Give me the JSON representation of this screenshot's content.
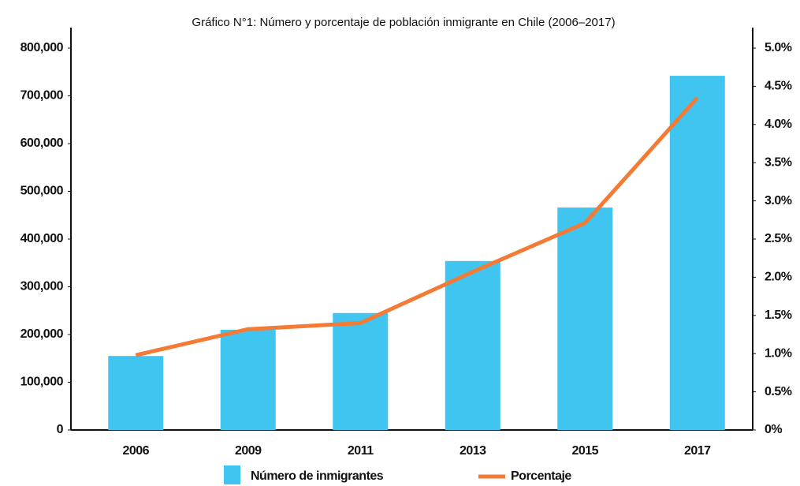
{
  "chart_data": {
    "type": "bar_line",
    "title": "Gráfico N°1: Número y porcentaje de población inmigrante en Chile (2006–2017)",
    "categories": [
      "2006",
      "2009",
      "2011",
      "2013",
      "2015",
      "2017"
    ],
    "series": [
      {
        "name": "Número de inmigrantes",
        "color": "#40c4f0",
        "type": "bar",
        "axis": "y",
        "values": [
          155000,
          210000,
          245000,
          354000,
          466000,
          742000
        ]
      },
      {
        "name": "Porcentaje",
        "color": "#f47b35",
        "type": "line",
        "axis": "y2",
        "values": [
          0.98,
          1.32,
          1.4,
          2.07,
          2.71,
          4.35
        ]
      }
    ],
    "ylim": [
      0,
      800000
    ],
    "yticks": [
      0,
      {
        "value": 100000,
        "label": "100,000"
      },
      {
        "value": 200000,
        "label": "200,000"
      },
      {
        "value": 300000,
        "label": "300,000"
      },
      {
        "value": 400000,
        "label": "400,000"
      },
      {
        "value": 500000,
        "label": "500,000"
      },
      {
        "value": 600000,
        "label": "600,000"
      },
      {
        "value": 700000,
        "label": "700,000"
      },
      {
        "value": 800000,
        "label": "800,000"
      }
    ],
    "y2lim": [
      0,
      5
    ],
    "y2ticks": [
      {
        "value": 0,
        "label": "0%"
      },
      {
        "value": 0.5,
        "label": "0.5%"
      },
      {
        "value": 1,
        "label": "1.0%"
      },
      {
        "value": 1.5,
        "label": "1.5%"
      },
      {
        "value": 2,
        "label": "2.0%"
      },
      {
        "value": 2.5,
        "label": "2.5%"
      },
      {
        "value": 3,
        "label": "3.0%"
      },
      {
        "value": 3.5,
        "label": "3.5%"
      },
      {
        "value": 4,
        "label": "4.0%"
      },
      {
        "value": 4.5,
        "label": "4.5%"
      },
      {
        "value": 5,
        "label": "5.0%"
      }
    ],
    "grid": false,
    "legend": "bottom"
  }
}
